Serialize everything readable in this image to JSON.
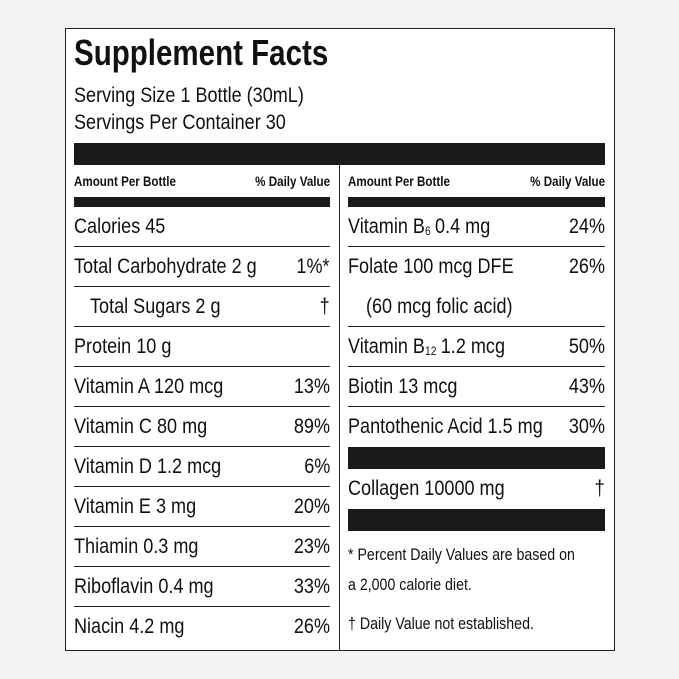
{
  "header": {
    "title": "Supplement Facts",
    "serving_size": "Serving Size 1 Bottle (30mL)",
    "servings_per_container": "Servings Per Container 30"
  },
  "left_column": {
    "header": {
      "amount": "Amount Per Bottle",
      "daily_value": "% Daily Value"
    },
    "rows": [
      {
        "name": "Calories 45"
      },
      {
        "name": "Total Carbohydrate 2 g",
        "dv": "1%*",
        "sub_rows": [
          {
            "name": "Total Sugars 2 g",
            "dv": "†"
          }
        ]
      },
      {
        "name": "Protein 10 g"
      },
      {
        "name": "Vitamin A 120 mcg",
        "dv": "13%"
      },
      {
        "name": "Vitamin C 80 mg",
        "dv": "89%"
      },
      {
        "name": "Vitamin D 1.2 mcg",
        "dv": "6%"
      },
      {
        "name": "Vitamin E 3 mg",
        "dv": "20%"
      },
      {
        "name": "Thiamin 0.3 mg",
        "dv": "23%"
      },
      {
        "name": "Riboflavin 0.4 mg",
        "dv": "33%"
      },
      {
        "name": "Niacin 4.2 mg",
        "dv": "26%"
      }
    ]
  },
  "right_column": {
    "header": {
      "amount": "Amount Per Bottle",
      "daily_value": "% Daily Value"
    },
    "rows": [
      {
        "name": "Vitamin B",
        "sub": "6",
        "amount": "0.4 mg",
        "dv": "24%"
      },
      {
        "name": "Folate 100 mcg DFE",
        "dv": "26%",
        "note": "(60 mcg folic acid)"
      },
      {
        "name": "Vitamin B",
        "sub": "12",
        "amount": "1.2 mcg",
        "dv": "50%"
      },
      {
        "name": "Biotin 13 mcg",
        "dv": "43%"
      },
      {
        "name": "Pantothenic Acid 1.5 mg",
        "dv": "30%"
      }
    ],
    "boxed_rows": [
      {
        "name": "Collagen 10000 mg",
        "dv": "†"
      }
    ],
    "footnotes": [
      "* Percent Daily Values are based on",
      "a 2,000 calorie diet.",
      "† Daily Value not established."
    ]
  }
}
